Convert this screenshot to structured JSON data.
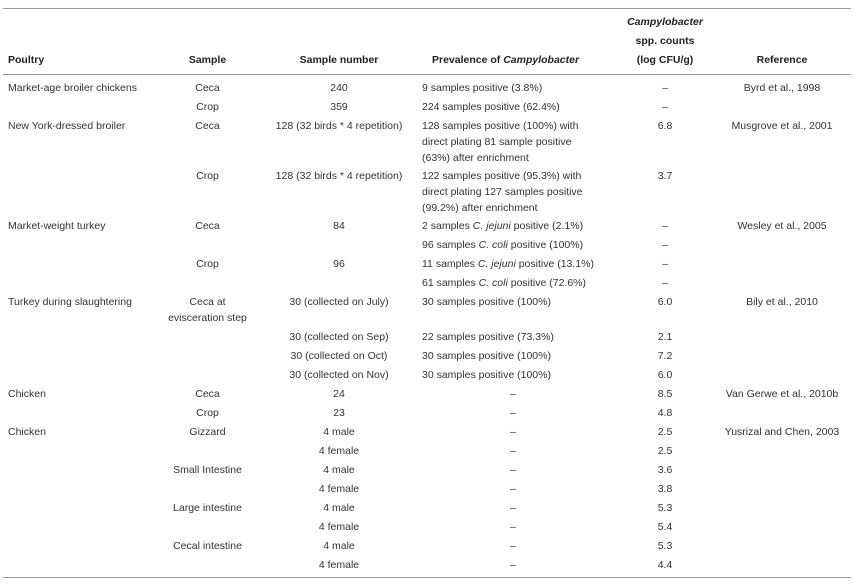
{
  "headers": {
    "poultry": "Poultry",
    "sample": "Sample",
    "sample_number": "Sample number",
    "prevalence_prefix": "Prevalence of ",
    "prevalence_italic": "Campylobacter",
    "counts_line1": "Campylobacter",
    "counts_line2": "spp. counts",
    "counts_line3": "(log CFU/g)",
    "reference": "Reference"
  },
  "rows": [
    {
      "poultry": "Market-age broiler chickens",
      "sample": "Ceca",
      "number": "240",
      "prev": [
        "9 samples positive (3.8%)"
      ],
      "count": "–",
      "ref": "Byrd et al., 1998"
    },
    {
      "poultry": "",
      "sample": "Crop",
      "number": "359",
      "prev": [
        "224 samples positive (62.4%)"
      ],
      "count": "–",
      "ref": ""
    },
    {
      "poultry": "New York-dressed broiler",
      "sample": "Ceca",
      "number": "128 (32 birds * 4 repetition)",
      "prev": [
        "128 samples positive (100%) with",
        "direct plating 81 sample positive",
        "(63%) after enrichment"
      ],
      "count": "6.8",
      "ref": "Musgrove et al., 2001"
    },
    {
      "poultry": "",
      "sample": "Crop",
      "number": "128 (32 birds * 4 repetition)",
      "prev": [
        "122 samples positive (95.3%) with",
        "direct plating 127 samples positive",
        "(99.2%) after enrichment"
      ],
      "count": "3.7",
      "ref": ""
    },
    {
      "poultry": "Market-weight turkey",
      "sample": "Ceca",
      "number": "84",
      "prev_pre": "2 samples ",
      "prev_it": "C. jejuni",
      "prev_post": " positive (2.1%)",
      "count": "–",
      "ref": "Wesley et al., 2005"
    },
    {
      "poultry": "",
      "sample": "",
      "number": "",
      "prev_pre": "96 samples ",
      "prev_it": "C. coli",
      "prev_post": " positive (100%)",
      "count": "–",
      "ref": ""
    },
    {
      "poultry": "",
      "sample": "Crop",
      "number": "96",
      "prev_pre": "11 samples ",
      "prev_it": "C. jejuni",
      "prev_post": " positive (13.1%)",
      "count": "–",
      "ref": ""
    },
    {
      "poultry": "",
      "sample": "",
      "number": "",
      "prev_pre": "61 samples ",
      "prev_it": "C. coli",
      "prev_post": " positive (72.6%)",
      "count": "–",
      "ref": ""
    },
    {
      "poultry": "Turkey during slaughtering",
      "sample_lines": [
        "Ceca at",
        "evisceration step"
      ],
      "number": "30 (collected on July)",
      "prev": [
        "30 samples positive (100%)"
      ],
      "count": "6.0",
      "ref": "Bily et al., 2010"
    },
    {
      "poultry": "",
      "sample": "",
      "number": "30 (collected on Sep)",
      "prev": [
        "22 samples positive (73.3%)"
      ],
      "count": "2.1",
      "ref": ""
    },
    {
      "poultry": "",
      "sample": "",
      "number": "30 (collected on Oct)",
      "prev": [
        "30 samples positive (100%)"
      ],
      "count": "7.2",
      "ref": ""
    },
    {
      "poultry": "",
      "sample": "",
      "number": "30 (collected on Nov)",
      "prev": [
        "30 samples positive (100%)"
      ],
      "count": "6.0",
      "ref": ""
    },
    {
      "poultry": "Chicken",
      "sample": "Ceca",
      "number": "24",
      "prev_dash": "–",
      "count": "8.5",
      "ref": "Van Gerwe et al., 2010b"
    },
    {
      "poultry": "",
      "sample": "Crop",
      "number": "23",
      "prev_dash": "–",
      "count": "4.8",
      "ref": ""
    },
    {
      "poultry": "Chicken",
      "sample": "Gizzard",
      "number": "4 male",
      "prev_dash": "–",
      "count": "2.5",
      "ref": "Yusrizal and Chen, 2003"
    },
    {
      "poultry": "",
      "sample": "",
      "number": "4 female",
      "prev_dash": "–",
      "count": "2.5",
      "ref": ""
    },
    {
      "poultry": "",
      "sample": "Small Intestine",
      "number": "4 male",
      "prev_dash": "–",
      "count": "3.6",
      "ref": ""
    },
    {
      "poultry": "",
      "sample": "",
      "number": "4 female",
      "prev_dash": "–",
      "count": "3.8",
      "ref": ""
    },
    {
      "poultry": "",
      "sample": "Large intestine",
      "number": "4 male",
      "prev_dash": "–",
      "count": "5.3",
      "ref": ""
    },
    {
      "poultry": "",
      "sample": "",
      "number": "4 female",
      "prev_dash": "–",
      "count": "5.4",
      "ref": ""
    },
    {
      "poultry": "",
      "sample": "Cecal intestine",
      "number": "4 male",
      "prev_dash": "–",
      "count": "5.3",
      "ref": ""
    },
    {
      "poultry": "",
      "sample": "",
      "number": "4 female",
      "prev_dash": "–",
      "count": "4.4",
      "ref": ""
    }
  ]
}
